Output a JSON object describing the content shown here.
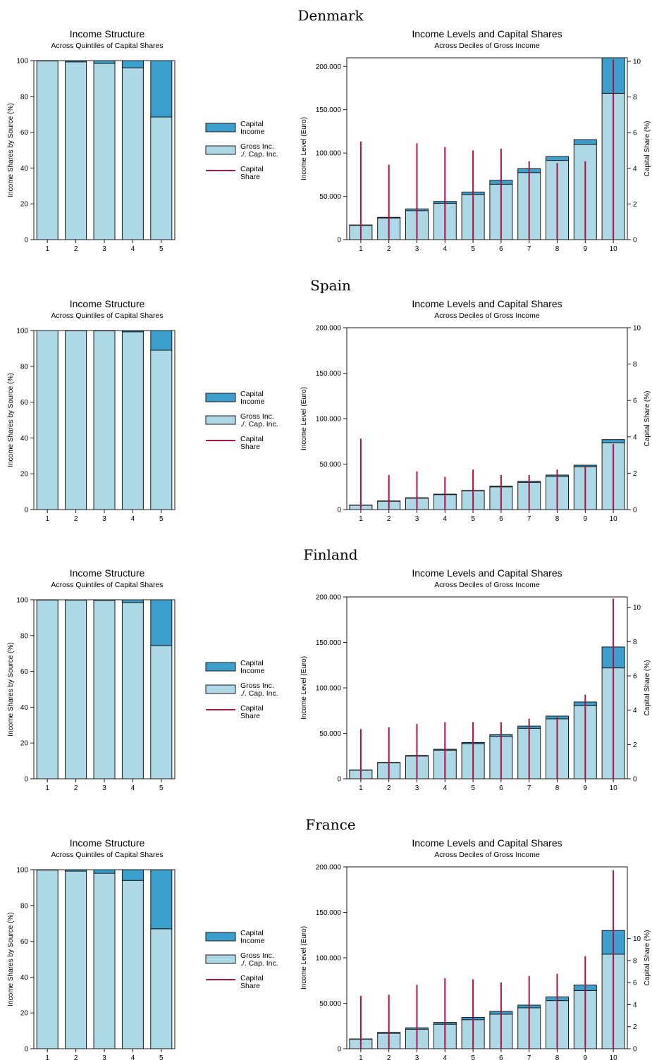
{
  "chart_data": [
    {
      "type": "bar",
      "panel": "Denmark-left",
      "country": "Denmark",
      "title": "Income Structure",
      "subtitle": "Across Quintiles of Capital Shares",
      "ylabel": "Income Shares by Source (%)",
      "categories": [
        "1",
        "2",
        "3",
        "4",
        "5"
      ],
      "ylim": [
        0,
        100
      ],
      "yticks": [
        0,
        20,
        40,
        60,
        80,
        100
      ],
      "series": [
        {
          "name": "Gross Inc. ./. Cap. Inc.",
          "color": "#add8e6",
          "values": [
            99.8,
            99.3,
            98.5,
            96.0,
            68.5
          ]
        },
        {
          "name": "Capital Income",
          "color": "#3a9fcc",
          "values": [
            0.2,
            0.7,
            1.5,
            4.0,
            31.5
          ]
        }
      ],
      "legend": {
        "capital_income": "Capital\nIncome",
        "gross": "Gross Inc.\n./. Cap. Inc.",
        "capital_share": "Capital\nShare"
      }
    },
    {
      "type": "bar",
      "panel": "Denmark-right",
      "title": "Income Levels and Capital Shares",
      "subtitle": "Across Deciles of Gross Income",
      "ylabel": "Income Level (Euro)",
      "y2label": "Capital Share (%)",
      "categories": [
        "1",
        "2",
        "3",
        "4",
        "5",
        "6",
        "7",
        "8",
        "9",
        "10"
      ],
      "ylim": [
        0,
        210000
      ],
      "yticks": [
        0,
        50000,
        100000,
        150000,
        200000
      ],
      "ytick_labels": [
        "0",
        "50.000",
        "100.000",
        "150.000",
        "200.000"
      ],
      "y2lim": [
        0,
        10.2
      ],
      "y2ticks": [
        0,
        2,
        4,
        6,
        8,
        10
      ],
      "series": [
        {
          "name": "Gross Inc. ./. Cap. Inc.",
          "values": [
            16500,
            25000,
            33500,
            42000,
            52000,
            64000,
            77500,
            91500,
            110000,
            169000
          ]
        },
        {
          "name": "Capital Income",
          "values": [
            500,
            800,
            2000,
            2200,
            3000,
            4500,
            4500,
            4500,
            5500,
            41000
          ]
        },
        {
          "name": "Capital Share",
          "type": "line",
          "axis": "right",
          "values": [
            5.5,
            4.2,
            5.4,
            5.2,
            5.0,
            5.1,
            4.4,
            4.3,
            4.4,
            10.1
          ]
        }
      ]
    },
    {
      "type": "bar",
      "panel": "Spain-left",
      "country": "Spain",
      "title": "Income Structure",
      "subtitle": "Across Quintiles of Capital Shares",
      "ylabel": "Income Shares by Source (%)",
      "categories": [
        "1",
        "2",
        "3",
        "4",
        "5"
      ],
      "ylim": [
        0,
        100
      ],
      "yticks": [
        0,
        20,
        40,
        60,
        80,
        100
      ],
      "series": [
        {
          "name": "Gross Inc. ./. Cap. Inc.",
          "values": [
            100.0,
            99.9,
            99.8,
            99.3,
            89.0
          ]
        },
        {
          "name": "Capital Income",
          "values": [
            0.0,
            0.1,
            0.2,
            0.7,
            11.0
          ]
        }
      ]
    },
    {
      "type": "bar",
      "panel": "Spain-right",
      "title": "Income Levels and Capital Shares",
      "subtitle": "Across Deciles of Gross Income",
      "ylabel": "Income Level (Euro)",
      "y2label": "Capital Share (%)",
      "categories": [
        "1",
        "2",
        "3",
        "4",
        "5",
        "6",
        "7",
        "8",
        "9",
        "10"
      ],
      "ylim": [
        0,
        200000
      ],
      "yticks": [
        0,
        50000,
        100000,
        150000,
        200000
      ],
      "ytick_labels": [
        "0",
        "50.000",
        "100.000",
        "150.000",
        "200.000"
      ],
      "y2lim": [
        0,
        10
      ],
      "y2ticks": [
        0,
        2,
        4,
        6,
        8,
        10
      ],
      "series": [
        {
          "name": "Gross Inc. ./. Cap. Inc.",
          "values": [
            4800,
            9200,
            12500,
            16500,
            20500,
            25000,
            30000,
            36500,
            47000,
            73500
          ]
        },
        {
          "name": "Capital Income",
          "values": [
            200,
            300,
            500,
            500,
            500,
            700,
            1000,
            1500,
            1800,
            3500
          ]
        },
        {
          "name": "Capital Share",
          "type": "line",
          "axis": "right",
          "values": [
            3.9,
            1.9,
            2.1,
            1.8,
            2.2,
            1.9,
            1.9,
            2.2,
            2.4,
            3.6
          ]
        }
      ]
    },
    {
      "type": "bar",
      "panel": "Finland-left",
      "country": "Finland",
      "title": "Income Structure",
      "subtitle": "Across Quintiles of Capital Shares",
      "ylabel": "Income Shares by Source (%)",
      "categories": [
        "1",
        "2",
        "3",
        "4",
        "5"
      ],
      "ylim": [
        0,
        100
      ],
      "yticks": [
        0,
        20,
        40,
        60,
        80,
        100
      ],
      "series": [
        {
          "name": "Gross Inc. ./. Cap. Inc.",
          "values": [
            99.9,
            99.8,
            99.7,
            98.5,
            74.5
          ]
        },
        {
          "name": "Capital Income",
          "values": [
            0.1,
            0.2,
            0.3,
            1.5,
            25.5
          ]
        }
      ]
    },
    {
      "type": "bar",
      "panel": "Finland-right",
      "title": "Income Levels and Capital Shares",
      "subtitle": "Across Deciles of Gross Income",
      "ylabel": "Income Level (Euro)",
      "y2label": "Capital Share (%)",
      "categories": [
        "1",
        "2",
        "3",
        "4",
        "5",
        "6",
        "7",
        "8",
        "9",
        "10"
      ],
      "ylim": [
        0,
        200000
      ],
      "yticks": [
        0,
        50000,
        100000,
        150000,
        200000
      ],
      "ytick_labels": [
        "0",
        "50.000",
        "100.000",
        "150.000",
        "200.000"
      ],
      "y2lim": [
        0,
        10.6
      ],
      "y2ticks": [
        0,
        2,
        4,
        6,
        8,
        10
      ],
      "series": [
        {
          "name": "Gross Inc. ./. Cap. Inc.",
          "values": [
            9500,
            17500,
            25000,
            31500,
            38500,
            46500,
            55500,
            66000,
            80500,
            122000
          ]
        },
        {
          "name": "Capital Income",
          "values": [
            300,
            500,
            700,
            1000,
            1500,
            2000,
            2500,
            3000,
            4000,
            23000
          ]
        },
        {
          "name": "Capital Share",
          "type": "line",
          "axis": "right",
          "values": [
            2.9,
            3.0,
            3.2,
            3.3,
            3.3,
            3.3,
            3.5,
            3.6,
            4.9,
            10.5
          ]
        }
      ]
    },
    {
      "type": "bar",
      "panel": "France-left",
      "country": "France",
      "title": "Income Structure",
      "subtitle": "Across Quintiles of Capital Shares",
      "ylabel": "Income Shares by Source (%)",
      "categories": [
        "1",
        "2",
        "3",
        "4",
        "5"
      ],
      "ylim": [
        0,
        100
      ],
      "yticks": [
        0,
        20,
        40,
        60,
        80,
        100
      ],
      "series": [
        {
          "name": "Gross Inc. ./. Cap. Inc.",
          "values": [
            99.8,
            99.2,
            98.0,
            94.0,
            67.0
          ]
        },
        {
          "name": "Capital Income",
          "values": [
            0.2,
            0.8,
            2.0,
            6.0,
            33.0
          ]
        }
      ]
    },
    {
      "type": "bar",
      "panel": "France-right",
      "title": "Income Levels and Capital Shares",
      "subtitle": "Across Deciles of Gross Income",
      "ylabel": "Income Level (Euro)",
      "y2label": "Capital Share (%)",
      "categories": [
        "1",
        "2",
        "3",
        "4",
        "5",
        "6",
        "7",
        "8",
        "9",
        "10"
      ],
      "ylim": [
        0,
        200000
      ],
      "yticks": [
        0,
        50000,
        100000,
        150000,
        200000
      ],
      "ytick_labels": [
        "0",
        "50.000",
        "100.000",
        "150.000",
        "200.000"
      ],
      "y2lim": [
        0,
        16.5
      ],
      "y2ticks": [
        0,
        2,
        4,
        6,
        8,
        10
      ],
      "series": [
        {
          "name": "Gross Inc. ./. Cap. Inc.",
          "values": [
            10500,
            17000,
            21500,
            27000,
            32000,
            38000,
            45000,
            53000,
            64000,
            104000
          ]
        },
        {
          "name": "Capital Income",
          "values": [
            300,
            1000,
            1500,
            2000,
            2500,
            3000,
            3000,
            4000,
            6000,
            26000
          ]
        },
        {
          "name": "Capital Share",
          "type": "line",
          "axis": "right",
          "values": [
            4.8,
            4.9,
            5.8,
            6.4,
            6.3,
            6.0,
            6.6,
            6.8,
            8.4,
            16.2
          ]
        }
      ]
    }
  ],
  "countries": [
    "Denmark",
    "Spain",
    "Finland",
    "France"
  ],
  "colors": {
    "capital_income": "#3a9fcc",
    "gross": "#add8e6",
    "capital_share": "#b0104a",
    "outline": "#1a1a1a"
  }
}
